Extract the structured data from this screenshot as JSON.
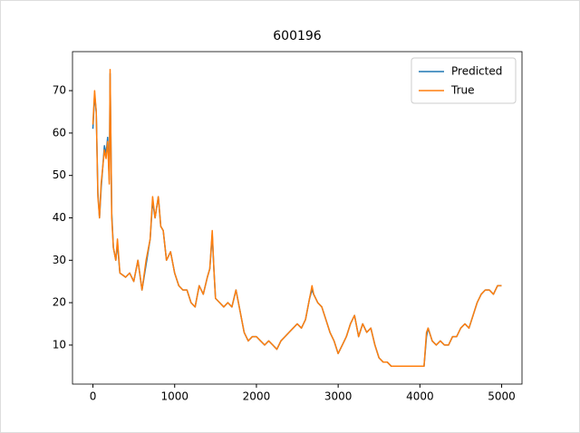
{
  "chart_data": {
    "type": "line",
    "title": "600196",
    "x": [
      0,
      20,
      40,
      60,
      80,
      100,
      120,
      140,
      160,
      180,
      200,
      210,
      230,
      250,
      280,
      300,
      330,
      400,
      450,
      500,
      550,
      600,
      650,
      700,
      730,
      760,
      800,
      830,
      860,
      900,
      950,
      1000,
      1050,
      1100,
      1150,
      1200,
      1250,
      1300,
      1350,
      1400,
      1430,
      1460,
      1480,
      1500,
      1550,
      1600,
      1650,
      1700,
      1750,
      1800,
      1850,
      1900,
      1950,
      2000,
      2050,
      2100,
      2150,
      2200,
      2250,
      2300,
      2350,
      2400,
      2450,
      2500,
      2550,
      2600,
      2650,
      2680,
      2700,
      2750,
      2800,
      2850,
      2900,
      2950,
      3000,
      3050,
      3100,
      3150,
      3200,
      3250,
      3300,
      3350,
      3400,
      3450,
      3500,
      3550,
      3600,
      3650,
      3700,
      3750,
      3800,
      3850,
      3900,
      3950,
      4000,
      4050,
      4080,
      4100,
      4150,
      4200,
      4250,
      4300,
      4350,
      4400,
      4450,
      4500,
      4550,
      4600,
      4650,
      4700,
      4750,
      4800,
      4850,
      4900,
      4950,
      4999
    ],
    "series": [
      {
        "name": "Predicted",
        "color": "#1f77b4",
        "values": [
          61,
          69,
          65,
          46,
          40,
          47,
          52,
          57,
          55,
          59,
          49,
          74,
          41,
          33,
          30,
          34,
          27,
          26,
          27,
          25,
          30,
          23,
          29,
          35,
          44,
          40,
          45,
          38,
          37,
          30,
          32,
          27,
          24,
          23,
          23,
          20,
          19,
          24,
          22,
          26,
          28,
          36,
          28,
          21,
          20,
          19,
          20,
          19,
          23,
          18,
          13,
          11,
          12,
          12,
          11,
          10,
          11,
          10,
          9,
          11,
          12,
          13,
          14,
          15,
          14,
          16,
          21,
          23,
          22,
          20,
          19,
          16,
          13,
          11,
          8,
          10,
          12,
          15,
          17,
          12,
          15,
          13,
          14,
          10,
          7,
          6,
          6,
          5,
          5,
          5,
          5,
          5,
          5,
          5,
          5,
          5,
          12,
          14,
          11,
          10,
          11,
          10,
          10,
          12,
          12,
          14,
          15,
          14,
          17,
          20,
          22,
          23,
          23,
          22,
          24,
          24
        ]
      },
      {
        "name": "True",
        "color": "#ff7f0e",
        "values": [
          62,
          70,
          65,
          45,
          40,
          48,
          52,
          56,
          54,
          58,
          48,
          75,
          40,
          33,
          30,
          35,
          27,
          26,
          27,
          25,
          30,
          23,
          30,
          35,
          45,
          40,
          45,
          38,
          37,
          30,
          32,
          27,
          24,
          23,
          23,
          20,
          19,
          24,
          22,
          26,
          28,
          37,
          28,
          21,
          20,
          19,
          20,
          19,
          23,
          18,
          13,
          11,
          12,
          12,
          11,
          10,
          11,
          10,
          9,
          11,
          12,
          13,
          14,
          15,
          14,
          16,
          21,
          24,
          22,
          20,
          19,
          16,
          13,
          11,
          8,
          10,
          12,
          15,
          17,
          12,
          15,
          13,
          14,
          10,
          7,
          6,
          6,
          5,
          5,
          5,
          5,
          5,
          5,
          5,
          5,
          5,
          13,
          14,
          11,
          10,
          11,
          10,
          10,
          12,
          12,
          14,
          15,
          14,
          17,
          20,
          22,
          23,
          23,
          22,
          24,
          24
        ]
      }
    ],
    "xlim": [
      -250,
      5249
    ],
    "ylim": [
      0.8,
      79.2
    ],
    "xticks": [
      0,
      1000,
      2000,
      3000,
      4000,
      5000
    ],
    "yticks": [
      10,
      20,
      30,
      40,
      50,
      60,
      70
    ],
    "legend": "upper right"
  }
}
